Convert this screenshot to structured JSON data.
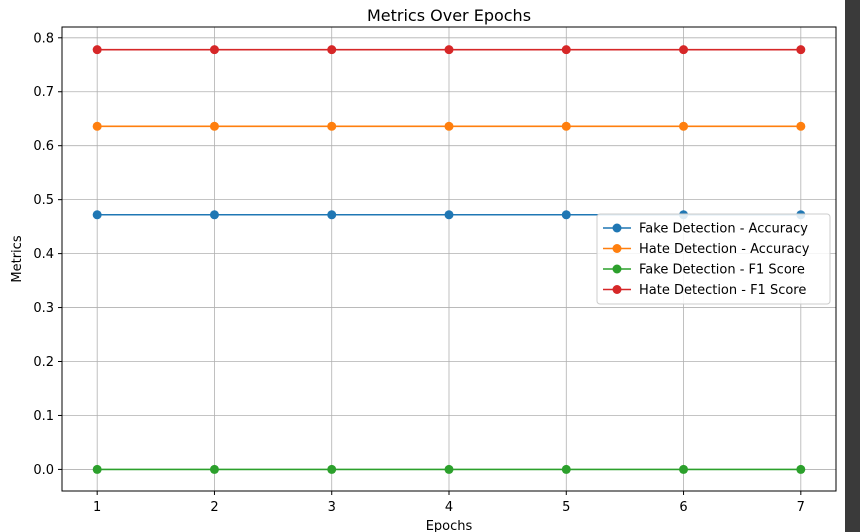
{
  "chart_data": {
    "type": "line",
    "title": "Metrics Over Epochs",
    "xlabel": "Epochs",
    "ylabel": "Metrics",
    "x": [
      1,
      2,
      3,
      4,
      5,
      6,
      7
    ],
    "xlim": [
      0.7,
      7.3
    ],
    "ylim": [
      -0.04,
      0.82
    ],
    "xticks": [
      1,
      2,
      3,
      4,
      5,
      6,
      7
    ],
    "yticks": [
      "0.0",
      "0.1",
      "0.2",
      "0.3",
      "0.4",
      "0.5",
      "0.6",
      "0.7",
      "0.8"
    ],
    "grid": true,
    "legend_position": "center-right",
    "series": [
      {
        "name": "Fake Detection - Accuracy",
        "color": "#1f77b4",
        "marker": "circle",
        "values": [
          0.472,
          0.472,
          0.472,
          0.472,
          0.472,
          0.472,
          0.472
        ]
      },
      {
        "name": "Hate Detection - Accuracy",
        "color": "#ff7f0e",
        "marker": "circle",
        "values": [
          0.636,
          0.636,
          0.636,
          0.636,
          0.636,
          0.636,
          0.636
        ]
      },
      {
        "name": "Fake Detection - F1 Score",
        "color": "#2ca02c",
        "marker": "circle",
        "values": [
          0.0,
          0.0,
          0.0,
          0.0,
          0.0,
          0.0,
          0.0
        ]
      },
      {
        "name": "Hate Detection - F1 Score",
        "color": "#d62728",
        "marker": "circle",
        "values": [
          0.778,
          0.778,
          0.778,
          0.778,
          0.778,
          0.778,
          0.778
        ]
      }
    ]
  }
}
